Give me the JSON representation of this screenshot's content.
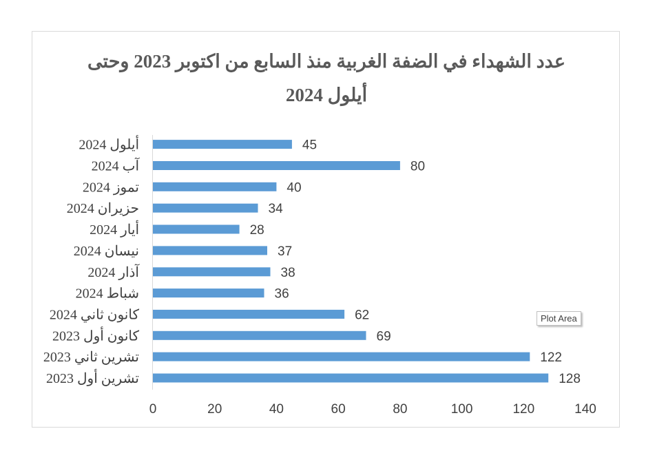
{
  "chart_data": {
    "type": "bar",
    "orientation": "horizontal",
    "title": "عدد الشهداء في الضفة الغربية منذ السابع من اكتوبر 2023 وحتى أيلول 2024",
    "title_lines": [
      "عدد الشهداء في الضفة الغربية منذ السابع من اكتوبر 2023 وحتى",
      "أيلول 2024"
    ],
    "categories": [
      "تشرين أول 2023",
      "تشرين ثاني 2023",
      "كانون أول 2023",
      "كانون ثاني 2024",
      "شباط 2024",
      "آذار 2024",
      "نيسان 2024",
      "أيار 2024",
      "حزيران 2024",
      "تموز 2024",
      "آب 2024",
      "أيلول 2024"
    ],
    "values": [
      128,
      122,
      69,
      62,
      36,
      38,
      37,
      28,
      34,
      40,
      80,
      45
    ],
    "xlim": [
      0,
      140
    ],
    "xticks": [
      0,
      20,
      40,
      60,
      80,
      100,
      120,
      140
    ],
    "xlabel": "",
    "ylabel": "",
    "grid": false,
    "legend": "none",
    "bar_color": "#5b9bd5",
    "data_labels": true
  },
  "tooltip": {
    "text": "Plot Area"
  }
}
